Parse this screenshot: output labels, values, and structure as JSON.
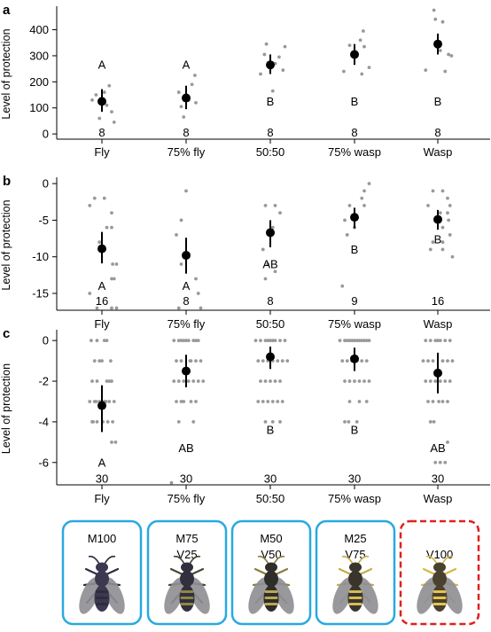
{
  "colors": {
    "point": "#999999",
    "mean": "#000000",
    "axis": "#000000",
    "box_solid": "#29a9e0",
    "box_dashed": "#e02020"
  },
  "chart_data": [
    {
      "panel": "a",
      "type": "scatter",
      "ylabel": "Level of protection",
      "categories": [
        "Fly",
        "75% fly",
        "50:50",
        "75% wasp",
        "Wasp"
      ],
      "ylim": [
        -20,
        480
      ],
      "yticks": [
        0,
        100,
        200,
        300,
        400
      ],
      "means": [
        125,
        138,
        265,
        305,
        345
      ],
      "error_low": [
        85,
        95,
        230,
        265,
        305
      ],
      "error_high": [
        172,
        185,
        305,
        345,
        385
      ],
      "letters": [
        "A",
        "A",
        "B",
        "B",
        "B"
      ],
      "letter_y": [
        265,
        265,
        125,
        125,
        125
      ],
      "n": [
        "8",
        "8",
        "8",
        "8",
        "8"
      ],
      "n_y": [
        5,
        5,
        5,
        5,
        5
      ],
      "points": [
        [
          [
            -0.2,
            130
          ],
          [
            0.15,
            185
          ],
          [
            0.2,
            85
          ],
          [
            -0.05,
            60
          ],
          [
            0.1,
            110
          ],
          [
            -0.12,
            150
          ],
          [
            0.25,
            45
          ],
          [
            0.05,
            160
          ]
        ],
        [
          [
            -0.05,
            65
          ],
          [
            -0.1,
            105
          ],
          [
            0.12,
            190
          ],
          [
            0.18,
            225
          ],
          [
            0.05,
            130
          ],
          [
            -0.15,
            160
          ],
          [
            0.2,
            120
          ],
          [
            0.02,
            140
          ]
        ],
        [
          [
            0.3,
            335
          ],
          [
            0.05,
            165
          ],
          [
            -0.12,
            305
          ],
          [
            -0.08,
            345
          ],
          [
            0.18,
            295
          ],
          [
            0.26,
            245
          ],
          [
            -0.2,
            230
          ],
          [
            0.1,
            270
          ]
        ],
        [
          [
            -0.1,
            340
          ],
          [
            0.12,
            360
          ],
          [
            0.18,
            395
          ],
          [
            0.3,
            255
          ],
          [
            0.15,
            230
          ],
          [
            -0.22,
            240
          ],
          [
            0.05,
            300
          ],
          [
            0.2,
            335
          ]
        ],
        [
          [
            -0.08,
            475
          ],
          [
            0.1,
            430
          ],
          [
            -0.25,
            245
          ],
          [
            0.15,
            240
          ],
          [
            0.22,
            305
          ],
          [
            0.28,
            300
          ],
          [
            -0.05,
            440
          ],
          [
            0.05,
            320
          ]
        ]
      ]
    },
    {
      "panel": "b",
      "type": "scatter",
      "ylabel": "Level of protection",
      "categories": [
        "Fly",
        "75% fly",
        "50:50",
        "75% wasp",
        "Wasp"
      ],
      "ylim": [
        -17.3,
        0.5
      ],
      "yticks": [
        0,
        -5,
        -10,
        -15
      ],
      "means": [
        -8.9,
        -9.8,
        -6.7,
        -4.6,
        -4.9
      ],
      "error_low": [
        -10.9,
        -12.3,
        -8.7,
        -6.1,
        -6.3
      ],
      "error_high": [
        -6.6,
        -7.4,
        -5.0,
        -3.3,
        -3.6
      ],
      "letters": [
        "A",
        "A",
        "AB",
        "B",
        "B"
      ],
      "letter_y": [
        -14.0,
        -14.0,
        -11.0,
        -9.0,
        -7.6
      ],
      "n": [
        "16",
        "8",
        "8",
        "9",
        "16"
      ],
      "n_y": [
        -16.0,
        -16.0,
        -16.0,
        -16.0,
        -16.0
      ],
      "points": [
        [
          [
            -0.25,
            -3
          ],
          [
            -0.15,
            -2
          ],
          [
            0.05,
            -2
          ],
          [
            0.2,
            -4
          ],
          [
            0.1,
            -6
          ],
          [
            0.2,
            -6
          ],
          [
            -0.05,
            -8
          ],
          [
            0.05,
            -9
          ],
          [
            0.22,
            -11
          ],
          [
            0.3,
            -11
          ],
          [
            0.2,
            -13
          ],
          [
            0.25,
            -13
          ],
          [
            -0.25,
            -15
          ],
          [
            -0.1,
            -17
          ],
          [
            0.2,
            -17
          ],
          [
            0.3,
            -17
          ]
        ],
        [
          [
            0.0,
            -1
          ],
          [
            -0.1,
            -5
          ],
          [
            -0.2,
            -7
          ],
          [
            -0.1,
            -11
          ],
          [
            0.2,
            -13
          ],
          [
            0.25,
            -15
          ],
          [
            -0.15,
            -17
          ],
          [
            0.3,
            -17
          ]
        ],
        [
          [
            -0.1,
            -3
          ],
          [
            0.1,
            -3
          ],
          [
            0.2,
            -4
          ],
          [
            0.05,
            -6
          ],
          [
            -0.15,
            -9
          ],
          [
            -0.05,
            -11
          ],
          [
            0.1,
            -12
          ],
          [
            -0.1,
            -13
          ]
        ],
        [
          [
            0.3,
            0
          ],
          [
            0.2,
            -1
          ],
          [
            0.15,
            -2
          ],
          [
            -0.1,
            -3
          ],
          [
            0.2,
            -3
          ],
          [
            -0.2,
            -5
          ],
          [
            0.0,
            -6
          ],
          [
            -0.15,
            -7
          ],
          [
            -0.25,
            -14
          ]
        ],
        [
          [
            -0.1,
            -1
          ],
          [
            0.1,
            -1
          ],
          [
            0.2,
            -2
          ],
          [
            -0.2,
            -3
          ],
          [
            0.25,
            -3
          ],
          [
            0.05,
            -4
          ],
          [
            0.2,
            -4
          ],
          [
            -0.05,
            -5
          ],
          [
            0.22,
            -5
          ],
          [
            0.1,
            -6
          ],
          [
            0.25,
            -7
          ],
          [
            -0.1,
            -8
          ],
          [
            0.1,
            -8
          ],
          [
            -0.15,
            -9
          ],
          [
            0.1,
            -9
          ],
          [
            0.3,
            -10
          ]
        ]
      ]
    },
    {
      "panel": "c",
      "type": "scatter",
      "ylabel": "Level of protection",
      "categories": [
        "Fly",
        "75% fly",
        "50:50",
        "75% wasp",
        "Wasp"
      ],
      "ylim": [
        -7.1,
        0.4
      ],
      "yticks": [
        0,
        -2,
        -4,
        -6
      ],
      "means": [
        -3.2,
        -1.5,
        -0.8,
        -0.9,
        -1.6
      ],
      "error_low": [
        -4.5,
        -2.3,
        -1.4,
        -1.5,
        -2.6
      ],
      "error_high": [
        -2.2,
        -0.7,
        -0.3,
        -0.35,
        -0.6
      ],
      "letters": [
        "A",
        "AB",
        "B",
        "B",
        "AB"
      ],
      "letter_y": [
        -6.0,
        -5.3,
        -4.4,
        -4.4,
        -5.3
      ],
      "n": [
        "30",
        "30",
        "30",
        "30",
        "30"
      ],
      "n_y": [
        -6.8,
        -6.8,
        -6.8,
        -6.8,
        -6.8
      ],
      "points": [
        [
          [
            -0.22,
            0
          ],
          [
            -0.1,
            0
          ],
          [
            0.05,
            0
          ],
          [
            0.1,
            0
          ],
          [
            -0.15,
            -1
          ],
          [
            0.18,
            -1
          ],
          [
            -0.05,
            -1
          ],
          [
            0.0,
            -1
          ],
          [
            -0.2,
            -2
          ],
          [
            -0.1,
            -2
          ],
          [
            0.1,
            -2
          ],
          [
            0.2,
            -2
          ],
          [
            -0.15,
            -3
          ],
          [
            -0.05,
            -3
          ],
          [
            0.05,
            -3
          ],
          [
            0.15,
            -3
          ],
          [
            0.25,
            -3
          ],
          [
            -0.25,
            -3
          ],
          [
            -0.12,
            -3
          ],
          [
            0.0,
            -3
          ],
          [
            -0.2,
            -4
          ],
          [
            -0.1,
            -4
          ],
          [
            0.02,
            -4
          ],
          [
            0.12,
            -4
          ],
          [
            0.22,
            -4
          ],
          [
            0.2,
            -5
          ],
          [
            0.28,
            -5
          ],
          [
            0.15,
            -2
          ],
          [
            0.08,
            -3
          ],
          [
            -0.18,
            -4
          ]
        ],
        [
          [
            -0.25,
            0
          ],
          [
            -0.15,
            0
          ],
          [
            -0.05,
            0
          ],
          [
            0.05,
            0
          ],
          [
            0.15,
            0
          ],
          [
            0.25,
            0
          ],
          [
            0.0,
            0
          ],
          [
            -0.2,
            -1
          ],
          [
            -0.1,
            -1
          ],
          [
            0.1,
            -1
          ],
          [
            0.2,
            -1
          ],
          [
            0.3,
            -1
          ],
          [
            -0.25,
            -2
          ],
          [
            -0.15,
            -2
          ],
          [
            -0.05,
            -2
          ],
          [
            0.05,
            -2
          ],
          [
            0.15,
            -2
          ],
          [
            0.25,
            -2
          ],
          [
            0.35,
            -2
          ],
          [
            -0.2,
            -3
          ],
          [
            -0.1,
            -3
          ],
          [
            0.1,
            -3
          ],
          [
            0.2,
            -3
          ],
          [
            -0.15,
            -4
          ],
          [
            0.15,
            -4
          ],
          [
            -0.3,
            -7
          ],
          [
            0.2,
            0
          ],
          [
            -0.1,
            0
          ],
          [
            0.08,
            -1
          ],
          [
            -0.05,
            -3
          ]
        ],
        [
          [
            -0.3,
            0
          ],
          [
            -0.2,
            0
          ],
          [
            -0.1,
            0
          ],
          [
            0.0,
            0
          ],
          [
            0.1,
            0
          ],
          [
            0.2,
            0
          ],
          [
            0.3,
            0
          ],
          [
            -0.25,
            -1
          ],
          [
            -0.15,
            -1
          ],
          [
            0.15,
            -1
          ],
          [
            0.25,
            -1
          ],
          [
            0.35,
            -1
          ],
          [
            -0.2,
            -2
          ],
          [
            -0.1,
            -2
          ],
          [
            0.1,
            -2
          ],
          [
            0.2,
            -2
          ],
          [
            -0.25,
            -3
          ],
          [
            -0.15,
            -3
          ],
          [
            -0.05,
            -3
          ],
          [
            0.05,
            -3
          ],
          [
            0.15,
            -3
          ],
          [
            -0.1,
            -4
          ],
          [
            0.05,
            -4
          ],
          [
            0.2,
            -4
          ],
          [
            -0.05,
            0
          ],
          [
            0.05,
            0
          ],
          [
            -0.05,
            -1
          ],
          [
            0.05,
            -1
          ],
          [
            0.0,
            -2
          ],
          [
            0.25,
            -3
          ]
        ],
        [
          [
            -0.3,
            0
          ],
          [
            -0.2,
            0
          ],
          [
            -0.1,
            0
          ],
          [
            0.0,
            0
          ],
          [
            0.1,
            0
          ],
          [
            0.2,
            0
          ],
          [
            0.3,
            0
          ],
          [
            -0.25,
            -1
          ],
          [
            -0.15,
            -1
          ],
          [
            0.15,
            -1
          ],
          [
            0.25,
            -1
          ],
          [
            -0.2,
            -2
          ],
          [
            -0.1,
            -2
          ],
          [
            0.1,
            -2
          ],
          [
            0.2,
            -2
          ],
          [
            0.3,
            -2
          ],
          [
            -0.1,
            -3
          ],
          [
            0.1,
            -3
          ],
          [
            -0.2,
            -4
          ],
          [
            -0.12,
            -4
          ],
          [
            0.05,
            -4
          ],
          [
            -0.05,
            0
          ],
          [
            0.05,
            0
          ],
          [
            -0.05,
            -1
          ],
          [
            0.05,
            -1
          ],
          [
            0.0,
            -2
          ],
          [
            0.25,
            -3
          ],
          [
            0.15,
            0
          ],
          [
            -0.15,
            0
          ],
          [
            0.25,
            0
          ]
        ],
        [
          [
            -0.25,
            0
          ],
          [
            -0.15,
            0
          ],
          [
            -0.05,
            0
          ],
          [
            0.05,
            0
          ],
          [
            0.15,
            0
          ],
          [
            0.25,
            0
          ],
          [
            -0.2,
            -1
          ],
          [
            -0.1,
            -1
          ],
          [
            0.1,
            -1
          ],
          [
            0.2,
            -1
          ],
          [
            0.3,
            -1
          ],
          [
            -0.25,
            -2
          ],
          [
            -0.15,
            -2
          ],
          [
            -0.05,
            -2
          ],
          [
            0.05,
            -2
          ],
          [
            0.15,
            -2
          ],
          [
            0.25,
            -2
          ],
          [
            -0.2,
            -3
          ],
          [
            -0.1,
            -3
          ],
          [
            0.1,
            -3
          ],
          [
            0.2,
            -3
          ],
          [
            -0.15,
            -4
          ],
          [
            0.2,
            -5
          ],
          [
            -0.05,
            -6
          ],
          [
            0.05,
            -6
          ],
          [
            0.15,
            -6
          ],
          [
            0.0,
            0
          ],
          [
            -0.3,
            -1
          ],
          [
            0.02,
            -3
          ],
          [
            -0.08,
            -4
          ]
        ]
      ]
    }
  ],
  "morphs": [
    {
      "line1": "M100",
      "line2": "",
      "border": "solid",
      "body_color": "#3b3850",
      "stripe_color": "#2f2c40",
      "leg_color": "#2f2c40"
    },
    {
      "line1": "M75",
      "line2": "V25",
      "border": "solid",
      "body_color": "#322f3e",
      "stripe_color": "#8d8746",
      "leg_color": "#4a4534"
    },
    {
      "line1": "M50",
      "line2": "V50",
      "border": "solid",
      "body_color": "#2f2d2a",
      "stripe_color": "#b9a952",
      "leg_color": "#8a7d3c"
    },
    {
      "line1": "M25",
      "line2": "V75",
      "border": "solid",
      "body_color": "#3a352c",
      "stripe_color": "#d4bd57",
      "leg_color": "#c4ad48"
    },
    {
      "line1": "V100",
      "line2": "",
      "border": "dashed",
      "body_color": "#4a412f",
      "stripe_color": "#e3c64d",
      "leg_color": "#d6b744"
    }
  ]
}
